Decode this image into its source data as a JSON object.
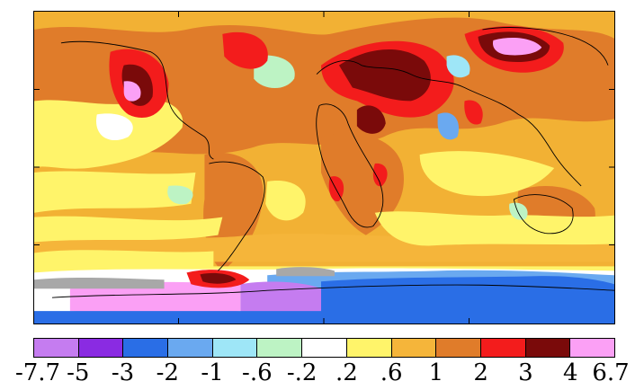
{
  "colorbar": {
    "labels": [
      "-7.7",
      "-5",
      "-3",
      "-2",
      "-1",
      "-.6",
      "-.2",
      ".2",
      ".6",
      "1",
      "2",
      "3",
      "4",
      "6.7"
    ],
    "colors": [
      "#c57cf0",
      "#8a2be2",
      "#2a6ee6",
      "#6aa9f0",
      "#9ee6f7",
      "#bdf3c4",
      "#ffffff",
      "#fff46a",
      "#f5b53a",
      "#e07c2a",
      "#f31c1c",
      "#7a0a0a",
      "#fba0f5"
    ]
  },
  "map": {
    "background_color": "#f2b134",
    "missing_data_color": "#a8a8a8"
  }
}
